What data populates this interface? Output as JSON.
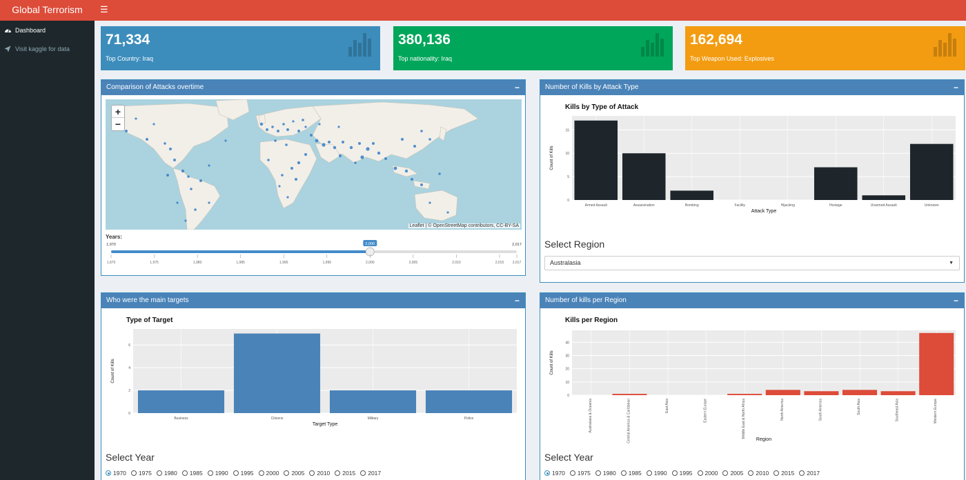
{
  "header": {
    "title": "Global Terrorism",
    "toggle_icon": "hamburger-icon"
  },
  "sidebar": {
    "items": [
      {
        "label": "Dashboard",
        "icon": "dashboard-icon"
      },
      {
        "label": "Visit kaggle for data",
        "icon": "paper-plane-icon"
      }
    ]
  },
  "valueboxes": [
    {
      "value": "71,334",
      "subtitle": "Top Country: Iraq",
      "color": "#3c8dbc",
      "icon": "bar-chart-icon"
    },
    {
      "value": "380,136",
      "subtitle": "Top nationality: Iraq",
      "color": "#00a65a",
      "icon": "bar-chart-icon"
    },
    {
      "value": "162,694",
      "subtitle": "Top Weapon Used: Explosives",
      "color": "#f39c12",
      "icon": "bar-chart-icon"
    }
  ],
  "boxes": {
    "attacks": {
      "title": "Comparison of Attacks overtime",
      "minimize": "−"
    },
    "kills_type": {
      "title": "Number of Kills by Attack Type",
      "minimize": "−"
    },
    "targets": {
      "title": "Who were the main targets",
      "minimize": "−"
    },
    "kills_region": {
      "title": "Number of kills per Region",
      "minimize": "−"
    }
  },
  "map": {
    "zoom_in": "+",
    "zoom_out": "−",
    "attribution": "Leaflet | © OpenStreetMap contributors, CC-BY-SA"
  },
  "slider": {
    "label": "Years:",
    "min": 1970,
    "max": 2017,
    "value": 2000,
    "min_label": "1,970",
    "max_label": "2,017",
    "value_label": "2,000",
    "ticks": [
      "1,970",
      "1,975",
      "1,980",
      "1,985",
      "1,990",
      "1,995",
      "2,000",
      "2,005",
      "2,010",
      "2,015",
      "2,017"
    ]
  },
  "region_select": {
    "label": "Select Region",
    "value": "Australasia"
  },
  "year_select": {
    "label": "Select Year",
    "options": [
      "1970",
      "1975",
      "1980",
      "1985",
      "1990",
      "1995",
      "2000",
      "2005",
      "2010",
      "2015",
      "2017"
    ],
    "selected": "1970"
  },
  "year_select2": {
    "label": "Select Year",
    "options": [
      "1970",
      "1975",
      "1980",
      "1985",
      "1990",
      "1995",
      "2000",
      "2005",
      "2010",
      "2015",
      "2017"
    ],
    "selected": "1970"
  },
  "chart_data": [
    {
      "id": "kills_type",
      "type": "bar",
      "title": "Kills by Type of Attack",
      "xlabel": "Attack Type",
      "ylabel": "Count of Kills",
      "color": "#1e262c",
      "categories": [
        "Armed Assault",
        "Assassination",
        "Bombing",
        "Facility",
        "Hijacking",
        "Hostage",
        "Unarmed Assault",
        "Unknown"
      ],
      "values": [
        17,
        10,
        2,
        0,
        0,
        7,
        1,
        12
      ],
      "ylim": [
        0,
        18
      ],
      "yticks": [
        0,
        5,
        10,
        15
      ],
      "rotate_labels": false
    },
    {
      "id": "targets",
      "type": "bar",
      "title": "Type of Target",
      "xlabel": "Target Type",
      "ylabel": "Count of Kills",
      "color": "#4a83b8",
      "categories": [
        "Business",
        "Citizens",
        "Military",
        "Police"
      ],
      "values": [
        2,
        7,
        2,
        2
      ],
      "ylim": [
        0,
        7.4
      ],
      "yticks": [
        0,
        2,
        4,
        6
      ],
      "rotate_labels": false
    },
    {
      "id": "kills_region",
      "type": "bar",
      "title": "Kills per Region",
      "xlabel": "Region",
      "ylabel": "Count of Kills",
      "color": "#dd4b39",
      "categories": [
        "Australasia & Oceania",
        "Central America & Caribbean",
        "East Asia",
        "Eastern Europe",
        "Middle East & North Africa",
        "North America",
        "South America",
        "South Asia",
        "Southeast Asia",
        "Western Europe"
      ],
      "values": [
        0,
        1,
        0,
        0,
        1,
        4,
        3,
        4,
        3,
        47
      ],
      "ylim": [
        0,
        49
      ],
      "yticks": [
        0,
        10,
        20,
        30,
        40
      ],
      "rotate_labels": true
    }
  ]
}
